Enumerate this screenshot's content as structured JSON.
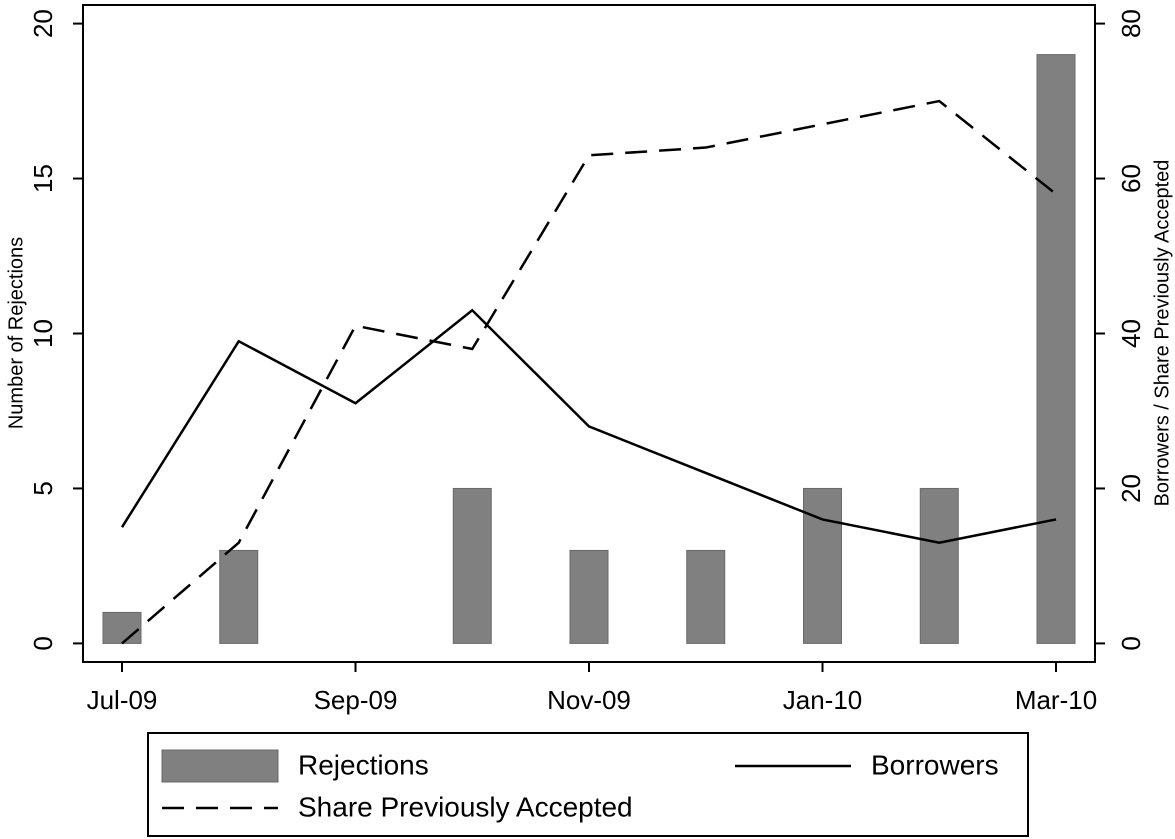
{
  "chart_data": {
    "type": "combo",
    "categories": [
      "Jul-09",
      null,
      "Sep-09",
      null,
      "Nov-09",
      null,
      "Jan-10",
      null,
      "Mar-10"
    ],
    "series": [
      {
        "name": "Rejections",
        "type": "bar",
        "color": "#808080",
        "axis": "y",
        "values": [
          1,
          3,
          0,
          5,
          3,
          3,
          5,
          5,
          19
        ]
      },
      {
        "name": "Borrowers",
        "type": "line",
        "linestyle": "solid",
        "color": "#000000",
        "axis": "y2",
        "values": [
          15,
          39,
          31,
          43,
          28,
          22,
          16,
          13,
          16
        ]
      },
      {
        "name": "Share Previously Accepted",
        "type": "line",
        "linestyle": "dashed",
        "color": "#000000",
        "axis": "y2",
        "values": [
          0,
          13,
          41,
          38,
          63,
          64,
          67,
          70,
          58
        ]
      }
    ],
    "ylabel": "Number of Rejections",
    "y2label": "Borrowers / Share Previously Accepted",
    "ylim": [
      -0.6,
      20.6
    ],
    "yticks": [
      0,
      5,
      10,
      15,
      20
    ],
    "y2lim": [
      -2.4,
      82.4
    ],
    "y2ticks": [
      0,
      20,
      40,
      60,
      80
    ],
    "grid": false
  }
}
